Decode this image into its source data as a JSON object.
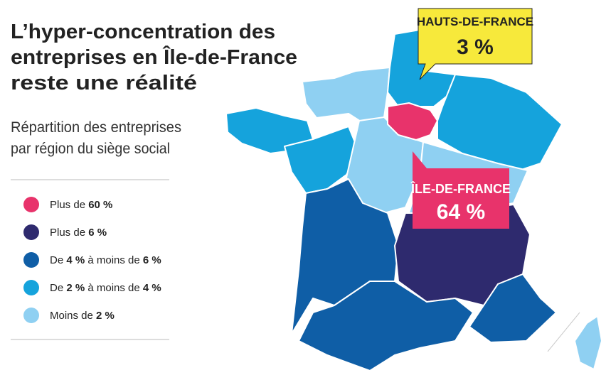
{
  "title": [
    "L’hyper-concentration des",
    "entreprises en Île-de-France",
    "reste une réalité"
  ],
  "subtitle": [
    "Répartition des entreprises",
    "par région du siège social"
  ],
  "legend": [
    {
      "color": "#e8336b",
      "parts": [
        "Plus de ",
        "60 %"
      ]
    },
    {
      "color": "#2e2a6e",
      "parts": [
        "Plus de ",
        "6 %"
      ]
    },
    {
      "color": "#0f5ea6",
      "parts": [
        "De ",
        "4 %",
        " à moins de ",
        "6 %"
      ]
    },
    {
      "color": "#15a3dc",
      "parts": [
        "De ",
        "2 %",
        " à moins de ",
        "4 %"
      ]
    },
    {
      "color": "#8fd0f2",
      "parts": [
        "Moins de ",
        "2 %"
      ]
    }
  ],
  "callouts": [
    {
      "region": "HAUTS-DE-FRANCE",
      "share": "3 %"
    },
    {
      "region": "ÎLE-DE-FRANCE",
      "share": "64 %"
    }
  ]
}
